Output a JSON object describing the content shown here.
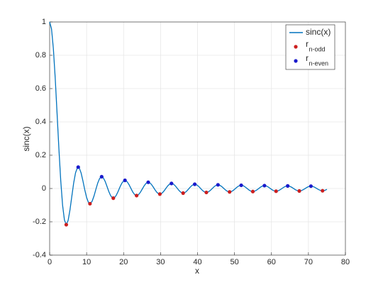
{
  "chart_data": {
    "type": "line",
    "xlabel": "x",
    "ylabel": "sinc(x)",
    "xlim": [
      0,
      80
    ],
    "xticks": [
      0,
      10,
      20,
      30,
      40,
      50,
      60,
      70,
      80
    ],
    "ylim": [
      -0.4,
      1
    ],
    "yticks": [
      -0.4,
      -0.2,
      0,
      0.2,
      0.4,
      0.6,
      0.8,
      1
    ],
    "grid": true,
    "legend": "upper right",
    "series": [
      {
        "name": "sinc(x)",
        "type": "line",
        "color": "#0072bd",
        "x": [
          0,
          0.5,
          1,
          1.5,
          2,
          2.5,
          3,
          3.5,
          4,
          4.5,
          5,
          5.5,
          6,
          6.5,
          7,
          7.5,
          8,
          8.5,
          9,
          9.5,
          10,
          10.5,
          11,
          11.5,
          12,
          12.5,
          13,
          13.5,
          14,
          14.5,
          15,
          15.5,
          16,
          16.5,
          17,
          17.5,
          18,
          18.5,
          19,
          19.5,
          20,
          20.5,
          21,
          21.5,
          22,
          22.5,
          23,
          23.5,
          24,
          24.5,
          25,
          25.5,
          26,
          26.5,
          27,
          27.5,
          28,
          28.5,
          29,
          29.5,
          30,
          30.5,
          31,
          31.5,
          32,
          32.5,
          33,
          33.5,
          34,
          34.5,
          35,
          35.5,
          36,
          36.5,
          37,
          37.5,
          38,
          38.5,
          39,
          39.5,
          40,
          40.5,
          41,
          41.5,
          42,
          42.5,
          43,
          43.5,
          44,
          44.5,
          45,
          45.5,
          46,
          46.5,
          47,
          47.5,
          48,
          48.5,
          49,
          49.5,
          50,
          50.5,
          51,
          51.5,
          52,
          52.5,
          53,
          53.5,
          54,
          54.5,
          55,
          55.5,
          56,
          56.5,
          57,
          57.5,
          58,
          58.5,
          59,
          59.5,
          60,
          60.5,
          61,
          61.5,
          62,
          62.5,
          63,
          63.5,
          64,
          64.5,
          65,
          65.5,
          66,
          66.5,
          67,
          67.5,
          68,
          68.5,
          69,
          69.5,
          70,
          70.5,
          71,
          71.5,
          72,
          72.5,
          73,
          73.5,
          74,
          74.5,
          75
        ],
        "values": [
          1,
          0.9589,
          0.8415,
          0.665,
          0.4546,
          0.2394,
          0.047,
          -0.1002,
          -0.1892,
          -0.2172,
          -0.1918,
          -0.1283,
          -0.0466,
          0.0331,
          0.0939,
          0.1251,
          0.1237,
          0.0939,
          0.0458,
          -0.0079,
          -0.0544,
          -0.0838,
          -0.0909,
          -0.0761,
          -0.0447,
          -0.0053,
          0.0323,
          0.0595,
          0.0708,
          0.0645,
          0.0434,
          0.0133,
          -0.018,
          -0.0431,
          -0.0566,
          -0.0558,
          -0.0417,
          -0.0185,
          0.0079,
          0.0311,
          0.0456,
          0.0486,
          0.0398,
          0.0219,
          -0.0004,
          -0.0217,
          -0.0368,
          -0.0425,
          -0.0377,
          -0.0241,
          -0.0053,
          0.0141,
          0.0293,
          0.037,
          0.0354,
          0.0254,
          0.0097,
          -0.0079,
          -0.0229,
          -0.0319,
          -0.0329,
          -0.026,
          -0.013,
          0.0027,
          0.0172,
          0.0272,
          0.0303,
          0.026,
          0.0156,
          0.0017,
          -0.0122,
          -0.0228,
          -0.0276,
          -0.0255,
          -0.0174,
          -0.0053,
          0.0078,
          0.0186,
          0.0247,
          0.0247,
          0.0186,
          0.0083,
          -0.0039,
          -0.0148,
          -0.0218,
          -0.0234,
          -0.0193,
          -0.0107,
          0.0004,
          0.0111,
          0.0189,
          0.0219,
          0.0196,
          0.0126,
          0.0026,
          -0.0077,
          -0.016,
          -0.0202,
          -0.0195,
          -0.014,
          -0.0052,
          0.0046,
          0.0131,
          0.0183,
          0.019,
          0.015,
          0.0075,
          -0.0017,
          -0.0103,
          -0.0163,
          -0.0182,
          -0.0156,
          -0.0093,
          -0.0009,
          0.0077,
          0.0142,
          0.0171,
          0.0159,
          0.0108,
          0.0032,
          -0.0051,
          -0.012,
          -0.0158,
          -0.0158,
          -0.0119,
          -0.0052,
          0.0027,
          0.0098,
          0.0144,
          0.0154,
          0.0127,
          0.007,
          -0.0004,
          -0.0076,
          -0.0128,
          -0.0148,
          -0.0132,
          -0.0084,
          -0.0017,
          0.0054,
          0.0111,
          0.014,
          0.0134,
          0.0096,
          0.0035,
          -0.0033,
          -0.0093,
          -0.0129,
          -0.0133,
          -0.0105,
          -0.0052
        ]
      },
      {
        "name": "r",
        "name_subscript": "n-odd",
        "type": "scatter",
        "color": "#cc1f1f",
        "x": [
          4.4934,
          10.9041,
          17.2208,
          23.5195,
          29.8116,
          36.1006,
          42.3879,
          48.6741,
          54.9597,
          61.2447,
          67.5294,
          73.8139
        ],
        "values": [
          -0.2172,
          -0.0913,
          -0.058,
          -0.0424,
          -0.0335,
          -0.0277,
          -0.0236,
          -0.0205,
          -0.0182,
          -0.0163,
          -0.0148,
          -0.0135
        ]
      },
      {
        "name": "r",
        "name_subscript": "n-even",
        "type": "scatter",
        "color": "#1a1acc",
        "x": [
          7.7253,
          14.0662,
          20.3713,
          26.6661,
          32.9564,
          39.2444,
          45.5311,
          51.817,
          58.1023,
          64.3871,
          70.6717
        ],
        "values": [
          0.1284,
          0.0709,
          0.049,
          0.0375,
          0.0303,
          0.0255,
          0.022,
          0.0193,
          0.0172,
          0.0155,
          0.0141
        ]
      }
    ]
  }
}
